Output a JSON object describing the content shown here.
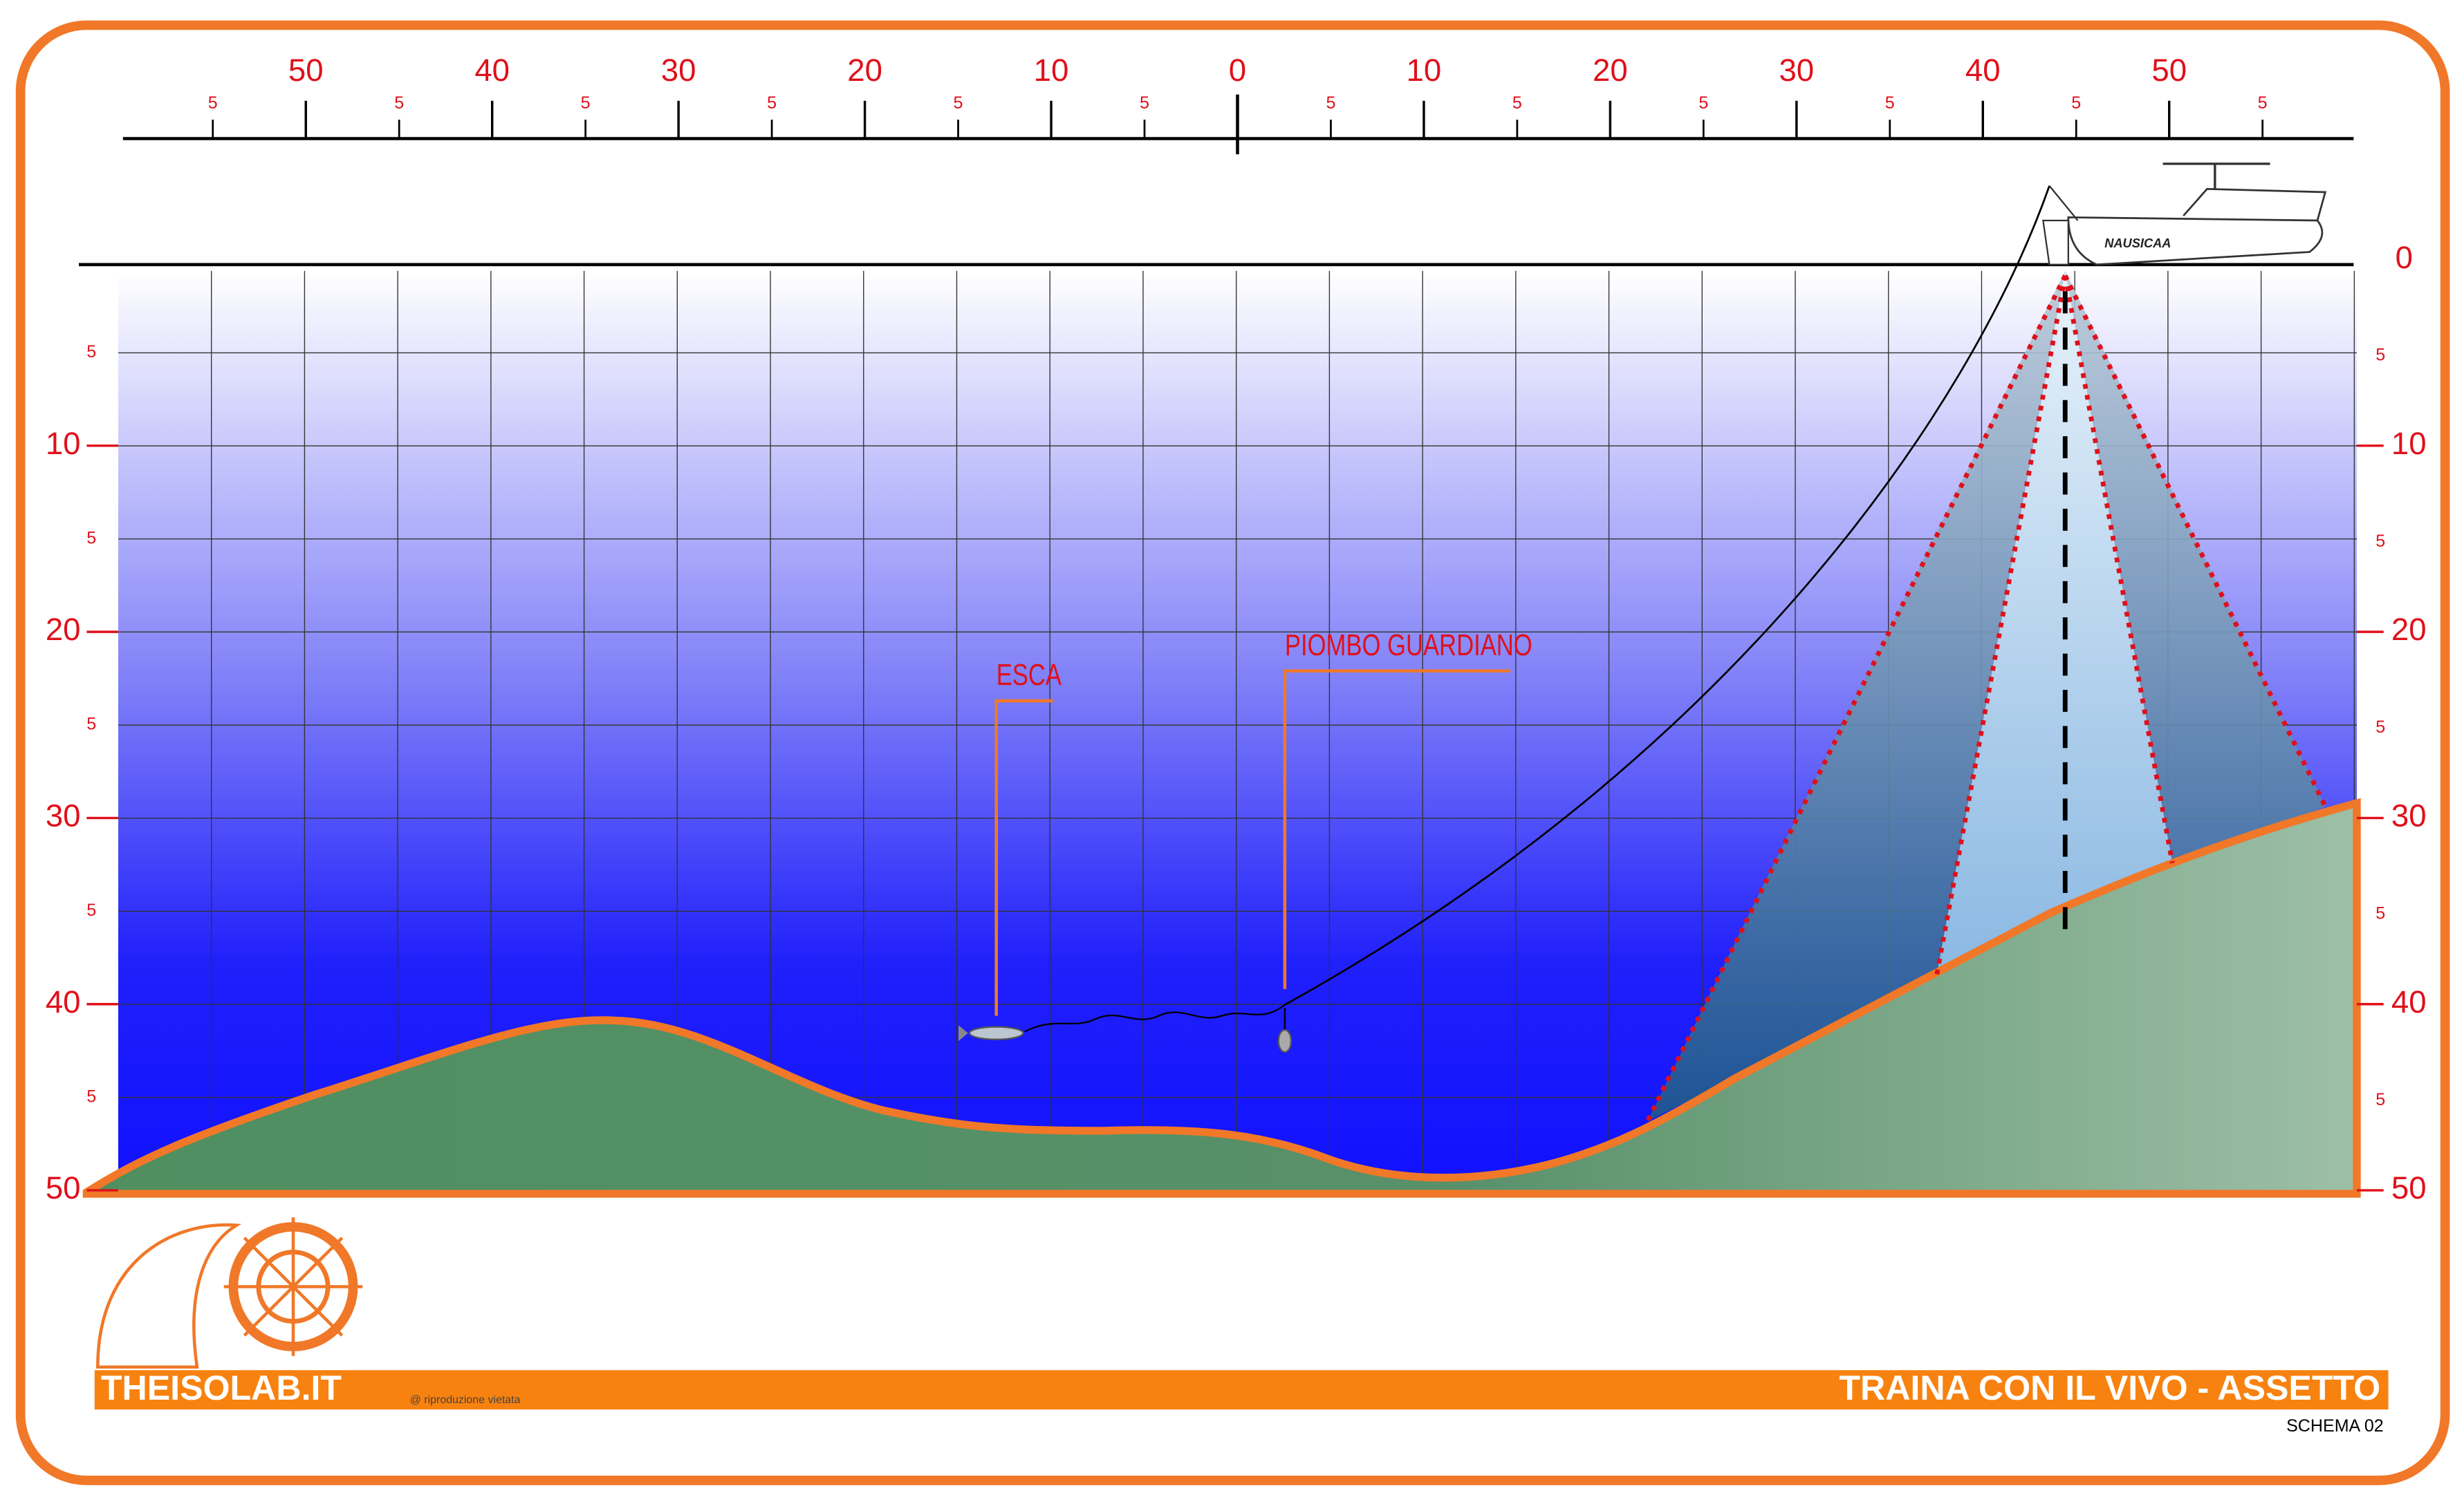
{
  "top_scale": {
    "major": [
      "50",
      "40",
      "30",
      "20",
      "10",
      "0",
      "10",
      "20",
      "30",
      "40",
      "50"
    ],
    "minor": "5"
  },
  "depth_scale": {
    "surface": "0",
    "major": [
      "10",
      "20",
      "30",
      "40",
      "50"
    ],
    "minor": "5"
  },
  "annotations": {
    "bait": "ESCA",
    "sinker": "PIOMBO GUARDIANO"
  },
  "boat": {
    "name": "NAUSICAA"
  },
  "footer": {
    "brand": "THEISOLAB.IT",
    "copyright": "@ riproduzione vietata",
    "title": "TRAINA CON IL VIVO - ASSETTO",
    "schema": "SCHEMA 02"
  }
}
